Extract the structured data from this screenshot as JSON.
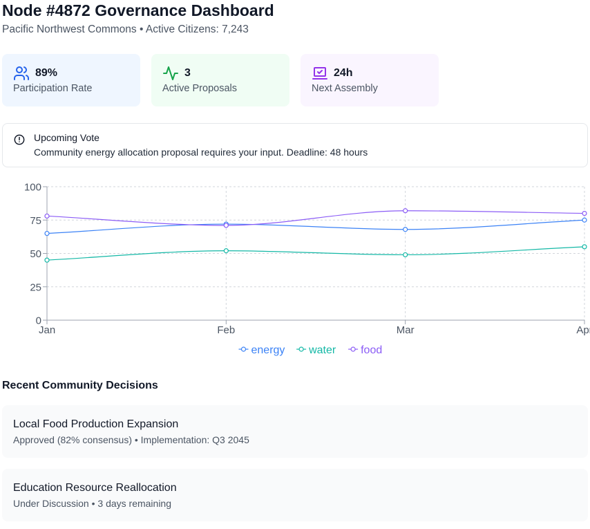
{
  "header": {
    "title": "Node #4872 Governance Dashboard",
    "subtitle": "Pacific Northwest Commons • Active Citizens: 7,243"
  },
  "stats": [
    {
      "icon": "users-icon",
      "value": "89%",
      "label": "Participation Rate",
      "color": "#2563eb"
    },
    {
      "icon": "activity-icon",
      "value": "3",
      "label": "Active Proposals",
      "color": "#16a34a"
    },
    {
      "icon": "laptop-icon",
      "value": "24h",
      "label": "Next Assembly",
      "color": "#9333ea"
    }
  ],
  "alert": {
    "icon": "alert-circle-icon",
    "title": "Upcoming Vote",
    "text": "Community energy allocation proposal requires your input. Deadline: 48 hours"
  },
  "chart_data": {
    "type": "line",
    "x": [
      "Jan",
      "Feb",
      "Mar",
      "Apr"
    ],
    "ylim": [
      0,
      100
    ],
    "yticks": [
      0,
      25,
      50,
      75,
      100
    ],
    "grid": true,
    "legend": "bottom",
    "series": [
      {
        "name": "energy",
        "values": [
          65,
          72,
          68,
          75
        ],
        "color": "#3b82f6"
      },
      {
        "name": "water",
        "values": [
          45,
          52,
          49,
          55
        ],
        "color": "#14b8a6"
      },
      {
        "name": "food",
        "values": [
          78,
          71,
          82,
          80
        ],
        "color": "#8b5cf6"
      }
    ]
  },
  "decisions": {
    "title": "Recent Community Decisions",
    "items": [
      {
        "title": "Local Food Production Expansion",
        "meta": "Approved (82% consensus) • Implementation: Q3 2045"
      },
      {
        "title": "Education Resource Reallocation",
        "meta": "Under Discussion • 3 days remaining"
      }
    ]
  }
}
